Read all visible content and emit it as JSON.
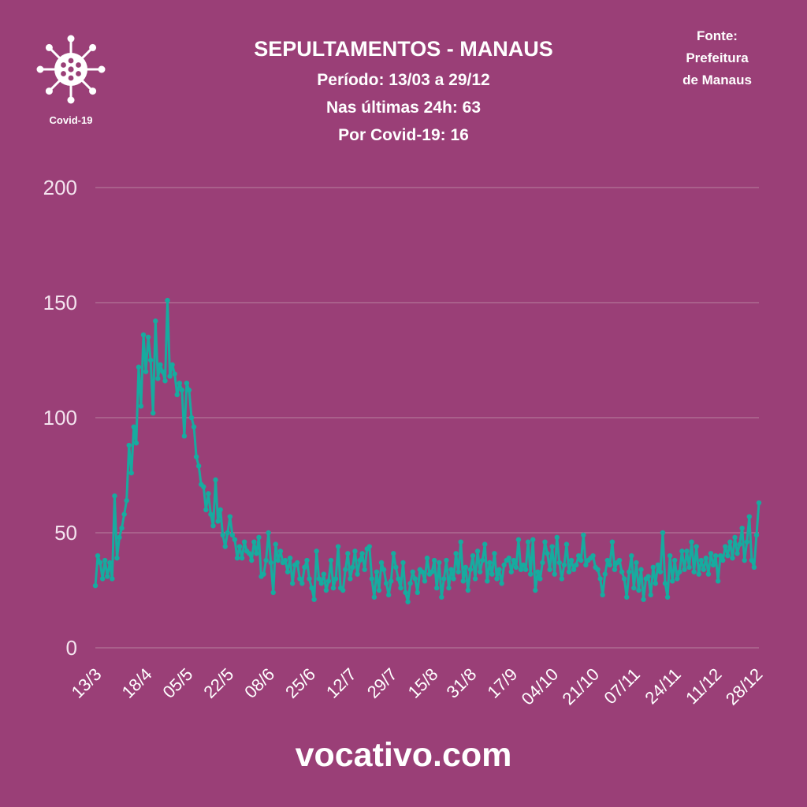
{
  "badge": {
    "label": "Covid-19",
    "icon": "virus-icon"
  },
  "source": {
    "line1": "Fonte:",
    "line2": "Prefeitura",
    "line3": "de Manaus"
  },
  "footer": {
    "site": "vocativo.com"
  },
  "colors": {
    "background": "#9a3f77",
    "line": "#17ab9f",
    "text": "#ffffff",
    "axis_text": "#f4e4ef",
    "grid": "#b8819f"
  },
  "chart_data": {
    "type": "line",
    "title": "SEPULTAMENTOS - MANAUS",
    "subtitle": [
      "Período: 13/03 a 29/12",
      "Nas últimas 24h: 63",
      "Por Covid-19: 16"
    ],
    "xlabel": "",
    "ylabel": "",
    "ylim": [
      0,
      200
    ],
    "y_ticks": [
      0,
      50,
      100,
      150,
      200
    ],
    "xlim": [
      0,
      276
    ],
    "x_ticks": [
      {
        "label": "13/3",
        "index": 0
      },
      {
        "label": "18/4",
        "index": 21
      },
      {
        "label": "05/5",
        "index": 38
      },
      {
        "label": "22/5",
        "index": 55
      },
      {
        "label": "08/6",
        "index": 72
      },
      {
        "label": "25/6",
        "index": 89
      },
      {
        "label": "12/7",
        "index": 106
      },
      {
        "label": "29/7",
        "index": 123
      },
      {
        "label": "15/8",
        "index": 140
      },
      {
        "label": "31/8",
        "index": 156
      },
      {
        "label": "17/9",
        "index": 173
      },
      {
        "label": "04/10",
        "index": 190
      },
      {
        "label": "21/10",
        "index": 207
      },
      {
        "label": "07/11",
        "index": 224
      },
      {
        "label": "24/11",
        "index": 241
      },
      {
        "label": "11/12",
        "index": 258
      },
      {
        "label": "28/12",
        "index": 275
      }
    ],
    "grid": "horizontal",
    "legend": "none",
    "markers": true,
    "series": [
      {
        "values": [
          27,
          40,
          37,
          30,
          38,
          31,
          37,
          30,
          66,
          39,
          48,
          52,
          58,
          64,
          88,
          76,
          96,
          89,
          122,
          105,
          136,
          120,
          135,
          125,
          102,
          142,
          117,
          123,
          120,
          116,
          151,
          118,
          123,
          119,
          110,
          115,
          112,
          92,
          115,
          112,
          100,
          96,
          83,
          79,
          71,
          70,
          60,
          67,
          58,
          53,
          73,
          55,
          60,
          49,
          44,
          50,
          57,
          49,
          47,
          39,
          44,
          39,
          46,
          42,
          41,
          38,
          46,
          41,
          48,
          31,
          32,
          38,
          50,
          37,
          24,
          45,
          38,
          42,
          37,
          38,
          33,
          39,
          28,
          36,
          37,
          30,
          28,
          35,
          38,
          30,
          26,
          21,
          42,
          30,
          28,
          32,
          25,
          29,
          38,
          26,
          30,
          44,
          26,
          25,
          34,
          41,
          30,
          35,
          42,
          32,
          38,
          41,
          34,
          43,
          44,
          30,
          22,
          33,
          25,
          37,
          34,
          28,
          23,
          29,
          41,
          35,
          30,
          26,
          37,
          24,
          20,
          28,
          33,
          30,
          24,
          34,
          33,
          29,
          39,
          32,
          33,
          38,
          26,
          37,
          22,
          30,
          38,
          26,
          34,
          30,
          41,
          33,
          46,
          29,
          35,
          25,
          34,
          40,
          30,
          42,
          33,
          38,
          45,
          29,
          37,
          32,
          41,
          30,
          34,
          28,
          36,
          38,
          39,
          33,
          38,
          35,
          47,
          34,
          36,
          34,
          46,
          32,
          47,
          25,
          33,
          30,
          37,
          46,
          41,
          34,
          44,
          32,
          48,
          37,
          30,
          36,
          45,
          33,
          38,
          34,
          36,
          40,
          38,
          49,
          36,
          38,
          39,
          40,
          35,
          34,
          30,
          23,
          32,
          38,
          36,
          46,
          34,
          37,
          38,
          33,
          30,
          22,
          33,
          40,
          26,
          37,
          25,
          34,
          21,
          30,
          31,
          23,
          35,
          28,
          36,
          33,
          50,
          28,
          22,
          40,
          29,
          38,
          30,
          33,
          42,
          34,
          42,
          35,
          46,
          33,
          44,
          32,
          38,
          34,
          39,
          32,
          41,
          36,
          40,
          29,
          40,
          38,
          44,
          40,
          46,
          39,
          48,
          41,
          45,
          52,
          38,
          46,
          57,
          38,
          35,
          49,
          63
        ]
      }
    ]
  }
}
